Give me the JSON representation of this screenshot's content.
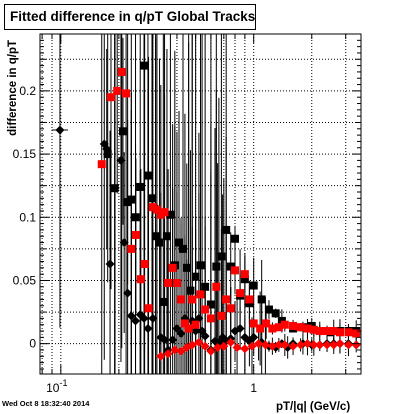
{
  "timestamp": "Wed Oct  8 18:32:40 2014",
  "colors": {
    "series_black": "#000000",
    "series_red": "#ff0000",
    "grid": "#000000"
  },
  "chart_data": {
    "type": "scatter",
    "title": "Fitted difference in q/pT  Global Tracks",
    "xlabel": "pT/|q| (GeV/c)",
    "ylabel": "difference in q/pT",
    "x_scale": "log",
    "xlim": [
      0.078,
      3.6
    ],
    "ylim": [
      -0.024,
      0.245
    ],
    "grid": true,
    "x_ticks": [
      {
        "value": 0.1,
        "label": "10",
        "exp": "-1"
      },
      {
        "value": 1,
        "label": "1",
        "exp": ""
      }
    ],
    "y_ticks": [
      {
        "value": 0,
        "label": "0"
      },
      {
        "value": 0.05,
        "label": "0.05"
      },
      {
        "value": 0.1,
        "label": "0.1"
      },
      {
        "value": 0.15,
        "label": "0.15"
      },
      {
        "value": 0.2,
        "label": "0.2"
      }
    ],
    "series": [
      {
        "marker": "diamond",
        "color": "#000000",
        "x": [
          0.099,
          0.168,
          0.173,
          0.18,
          0.191,
          0.205,
          0.213,
          0.222,
          0.232,
          0.244,
          0.258,
          0.27,
          0.283,
          0.3,
          0.31,
          0.33,
          0.345,
          0.36,
          0.38,
          0.4,
          0.42,
          0.44,
          0.46,
          0.48,
          0.5,
          0.52,
          0.54,
          0.56,
          0.6,
          0.63,
          0.66,
          0.69,
          0.72,
          0.76,
          0.8,
          0.85,
          0.9,
          0.95,
          1.0,
          1.1,
          1.2,
          1.3,
          1.4,
          1.5,
          1.6,
          1.8,
          2.0,
          2.2,
          2.4,
          2.6,
          2.8,
          3.1,
          3.4
        ],
        "y": [
          0.169,
          0.158,
          0.154,
          0.063,
          0.123,
          0.145,
          0.08,
          0.04,
          0.022,
          0.018,
          0.023,
          0.02,
          0.012,
          0.02,
          0.108,
          0.005,
          0.003,
          -0.005,
          0.003,
          0.012,
          0.008,
          0.02,
          0.012,
          0.018,
          0.01,
          0.02,
          0.01,
          0.006,
          -0.005,
          0.002,
          0.001,
          0.005,
          0.002,
          0.004,
          0.01,
          0.012,
          0.005,
          0.002,
          0.005,
          0.001,
          -0.002,
          -0.003,
          0.0,
          -0.003,
          0.0,
          0.0,
          -0.001,
          -0.001,
          0.0,
          0.0,
          0.0,
          0.0,
          -0.001
        ],
        "xerr": [
          0.005
        ]
      },
      {
        "marker": "square",
        "color": "#000000",
        "x": [
          0.175,
          0.19,
          0.21,
          0.222,
          0.232,
          0.244,
          0.258,
          0.27,
          0.283,
          0.297,
          0.31,
          0.325,
          0.34,
          0.355,
          0.37,
          0.39,
          0.41,
          0.43,
          0.45,
          0.47,
          0.5,
          0.53,
          0.56,
          0.6,
          0.64,
          0.68,
          0.72,
          0.76,
          0.8,
          0.85,
          0.9,
          0.95,
          1.0,
          1.1,
          1.2,
          1.3,
          1.4,
          1.6,
          1.8,
          2.0,
          2.2,
          2.5,
          2.8,
          3.1,
          3.4
        ],
        "y": [
          0.15,
          0.123,
          0.168,
          0.112,
          0.114,
          0.1,
          0.124,
          0.22,
          0.133,
          0.115,
          0.085,
          0.08,
          0.033,
          0.085,
          0.102,
          0.062,
          0.08,
          0.075,
          0.06,
          0.042,
          0.053,
          0.062,
          0.045,
          0.031,
          0.061,
          0.069,
          0.09,
          0.061,
          0.083,
          0.038,
          0.051,
          0.032,
          0.046,
          0.035,
          0.027,
          0.024,
          0.018,
          0.012,
          0.013,
          0.014,
          0.01,
          0.009,
          0.01,
          0.01,
          0.01
        ]
      },
      {
        "marker": "square",
        "color": "#ff0000",
        "x": [
          0.163,
          0.182,
          0.196,
          0.207,
          0.218,
          0.232,
          0.245,
          0.26,
          0.272,
          0.285,
          0.3,
          0.315,
          0.33,
          0.345,
          0.36,
          0.38,
          0.4,
          0.42,
          0.44,
          0.46,
          0.48,
          0.5,
          0.53,
          0.56,
          0.6,
          0.64,
          0.68,
          0.72,
          0.76,
          0.8,
          0.85,
          0.9,
          0.95,
          1.0,
          1.08,
          1.16,
          1.25,
          1.35,
          1.45,
          1.6,
          1.75,
          1.9,
          2.05,
          2.2,
          2.4,
          2.6,
          2.8,
          3.1,
          3.4
        ],
        "y": [
          0.142,
          0.195,
          0.2,
          0.215,
          0.198,
          0.075,
          0.086,
          0.051,
          0.063,
          0.028,
          0.108,
          0.106,
          0.102,
          0.104,
          0.048,
          0.06,
          0.048,
          0.035,
          0.016,
          0.012,
          0.035,
          0.015,
          0.039,
          0.027,
          0.02,
          0.045,
          0.022,
          0.035,
          0.028,
          0.058,
          0.04,
          0.055,
          0.035,
          0.016,
          0.012,
          0.016,
          0.012,
          0.013,
          0.015,
          0.014,
          0.013,
          0.012,
          0.011,
          0.01,
          0.01,
          0.01,
          0.009,
          0.009,
          0.008
        ]
      },
      {
        "marker": "diamond",
        "color": "#ff0000",
        "x": [
          0.33,
          0.36,
          0.39,
          0.42,
          0.45,
          0.48,
          0.52,
          0.56,
          0.6,
          0.65,
          0.7,
          0.76,
          0.82,
          0.9,
          0.98,
          1.06,
          1.15,
          1.25,
          1.35,
          1.45,
          1.6,
          1.75,
          1.9,
          2.05,
          2.2,
          2.4,
          2.6,
          2.8,
          3.1,
          3.4
        ],
        "y": [
          -0.01,
          -0.008,
          -0.005,
          -0.006,
          -0.003,
          -0.001,
          0.001,
          -0.002,
          -0.006,
          -0.003,
          -0.002,
          0.001,
          -0.003,
          -0.004,
          -0.002,
          0.0,
          -0.001,
          -0.002,
          -0.001,
          -0.001,
          -0.002,
          -0.001,
          0.0,
          -0.001,
          -0.001,
          -0.001,
          -0.001,
          0.0,
          -0.001,
          -0.001
        ]
      }
    ]
  }
}
